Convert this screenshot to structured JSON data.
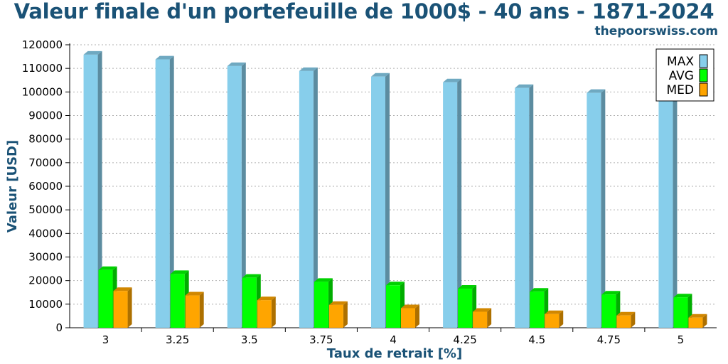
{
  "header": {
    "title": "Valeur finale d'un portefeuille de 1000$ - 40 ans - 1871-2024",
    "source": "thepoorswiss.com"
  },
  "chart_data": {
    "type": "bar",
    "title": "Valeur finale d'un portefeuille de 1000$ - 40 ans - 1871-2024",
    "xlabel": "Taux de retrait [%]",
    "ylabel": "Valeur [USD]",
    "ylim": [
      0,
      120000
    ],
    "yticks": [
      0,
      10000,
      20000,
      30000,
      40000,
      50000,
      60000,
      70000,
      80000,
      90000,
      100000,
      110000,
      120000
    ],
    "grid": true,
    "legend_position": "top-right",
    "categories": [
      "3",
      "3.25",
      "3.5",
      "3.75",
      "4",
      "4.25",
      "4.5",
      "4.75",
      "5"
    ],
    "series": [
      {
        "name": "MAX",
        "color": "#87ceeb",
        "values": [
          115800,
          113800,
          111000,
          108900,
          106500,
          104100,
          101700,
          99600,
          97000
        ]
      },
      {
        "name": "AVG",
        "color": "#00ff00",
        "values": [
          24500,
          22800,
          21200,
          19500,
          18000,
          16600,
          15300,
          14100,
          12900
        ]
      },
      {
        "name": "MED",
        "color": "#ffa500",
        "values": [
          15600,
          13700,
          11700,
          9700,
          8300,
          6800,
          5800,
          5200,
          4300
        ]
      }
    ]
  }
}
